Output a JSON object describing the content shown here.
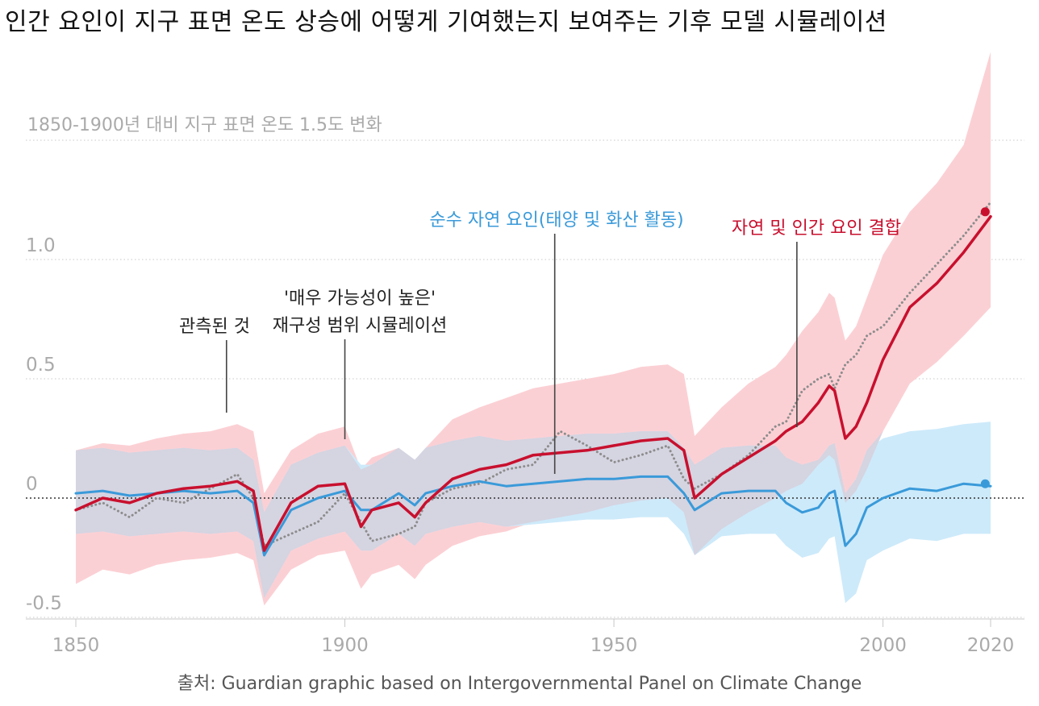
{
  "title": "인간 요인이 지구 표면 온도 상승에 어떻게 기여했는지 보여주는 기후 모델 시뮬레이션",
  "source": "출처: Guardian graphic based on Intergovernmental Panel on Climate Change",
  "colors": {
    "observed": "#8c8c8c",
    "natural": "#3a9ad9",
    "natural_band": "#cdeafa",
    "combined": "#c8102e",
    "combined_band": "#fbd0d4",
    "overlap_band": "#d5d4e1",
    "grid": "#c8c8c8",
    "axis_text": "#aaaaaa"
  },
  "chart_data": {
    "type": "line",
    "ylabel": "1850-1900년 대비 지구 표면 온도 1.5도 변화",
    "xlim": [
      1850,
      2020
    ],
    "ylim": [
      -0.5,
      1.5
    ],
    "xticks": [
      1850,
      1900,
      1950,
      2000,
      2020
    ],
    "yticks": [
      {
        "value": 1.0,
        "label": "1.0"
      },
      {
        "value": 0.5,
        "label": "0.5"
      },
      {
        "value": 0,
        "label": "0"
      },
      {
        "value": -0.5,
        "label": "-0.5"
      }
    ],
    "grid": true,
    "x_years": [
      1850,
      1855,
      1860,
      1865,
      1870,
      1875,
      1880,
      1883,
      1885,
      1890,
      1895,
      1900,
      1903,
      1905,
      1910,
      1913,
      1915,
      1920,
      1925,
      1930,
      1935,
      1940,
      1945,
      1950,
      1955,
      1960,
      1963,
      1965,
      1970,
      1975,
      1980,
      1982,
      1985,
      1988,
      1990,
      1991,
      1993,
      1995,
      1997,
      2000,
      2005,
      2010,
      2015,
      2020
    ],
    "series": [
      {
        "name": "관측된 것",
        "key": "observed",
        "y": [
          -0.05,
          -0.02,
          -0.08,
          0.0,
          -0.02,
          0.04,
          0.1,
          0.0,
          -0.2,
          -0.15,
          -0.1,
          0.02,
          -0.1,
          -0.18,
          -0.15,
          -0.12,
          -0.02,
          0.04,
          0.06,
          0.12,
          0.14,
          0.28,
          0.22,
          0.15,
          0.18,
          0.22,
          0.08,
          0.04,
          0.1,
          0.18,
          0.3,
          0.32,
          0.45,
          0.5,
          0.52,
          0.46,
          0.56,
          0.6,
          0.68,
          0.72,
          0.86,
          0.98,
          1.1,
          1.24
        ],
        "band_low": null,
        "band_high": null
      },
      {
        "name": "순수 자연 요인(태양 및 화산 활동)",
        "key": "natural",
        "y": [
          0.02,
          0.03,
          0.01,
          0.02,
          0.03,
          0.02,
          0.03,
          -0.02,
          -0.24,
          -0.05,
          0.0,
          0.03,
          -0.05,
          -0.05,
          0.02,
          -0.03,
          0.02,
          0.05,
          0.07,
          0.05,
          0.06,
          0.07,
          0.08,
          0.08,
          0.09,
          0.09,
          0.02,
          -0.05,
          0.02,
          0.03,
          0.03,
          -0.02,
          -0.06,
          -0.04,
          0.02,
          0.03,
          -0.2,
          -0.15,
          -0.04,
          0.0,
          0.04,
          0.03,
          0.06,
          0.05
        ],
        "band_low": [
          -0.15,
          -0.14,
          -0.16,
          -0.15,
          -0.14,
          -0.15,
          -0.14,
          -0.18,
          -0.42,
          -0.22,
          -0.17,
          -0.14,
          -0.22,
          -0.22,
          -0.15,
          -0.2,
          -0.15,
          -0.12,
          -0.1,
          -0.12,
          -0.11,
          -0.1,
          -0.09,
          -0.09,
          -0.08,
          -0.08,
          -0.15,
          -0.24,
          -0.16,
          -0.15,
          -0.15,
          -0.2,
          -0.25,
          -0.23,
          -0.17,
          -0.16,
          -0.44,
          -0.4,
          -0.26,
          -0.22,
          -0.17,
          -0.18,
          -0.15,
          -0.15
        ],
        "band_high": [
          0.2,
          0.21,
          0.19,
          0.2,
          0.21,
          0.2,
          0.21,
          0.16,
          -0.06,
          0.14,
          0.19,
          0.22,
          0.14,
          0.14,
          0.21,
          0.16,
          0.21,
          0.24,
          0.26,
          0.24,
          0.25,
          0.26,
          0.27,
          0.27,
          0.28,
          0.28,
          0.21,
          0.14,
          0.21,
          0.22,
          0.22,
          0.17,
          0.14,
          0.16,
          0.22,
          0.23,
          0.02,
          0.08,
          0.2,
          0.25,
          0.28,
          0.29,
          0.31,
          0.32
        ]
      },
      {
        "name": "자연 및 인간 요인 결합",
        "key": "combined",
        "y": [
          -0.05,
          0.0,
          -0.02,
          0.02,
          0.04,
          0.05,
          0.07,
          0.03,
          -0.22,
          -0.02,
          0.05,
          0.06,
          -0.12,
          -0.05,
          -0.02,
          -0.08,
          -0.02,
          0.08,
          0.12,
          0.14,
          0.18,
          0.19,
          0.2,
          0.22,
          0.24,
          0.25,
          0.2,
          0.0,
          0.1,
          0.17,
          0.24,
          0.28,
          0.32,
          0.4,
          0.47,
          0.45,
          0.25,
          0.3,
          0.4,
          0.58,
          0.8,
          0.9,
          1.03,
          1.18
        ],
        "band_low": [
          -0.36,
          -0.3,
          -0.32,
          -0.28,
          -0.26,
          -0.25,
          -0.23,
          -0.26,
          -0.45,
          -0.3,
          -0.24,
          -0.22,
          -0.38,
          -0.32,
          -0.28,
          -0.34,
          -0.28,
          -0.2,
          -0.16,
          -0.14,
          -0.1,
          -0.08,
          -0.06,
          -0.03,
          -0.01,
          0.0,
          -0.06,
          -0.24,
          -0.13,
          -0.06,
          0.0,
          0.03,
          0.06,
          0.14,
          0.18,
          0.16,
          -0.02,
          0.03,
          0.12,
          0.28,
          0.48,
          0.57,
          0.68,
          0.8
        ],
        "band_high": [
          0.2,
          0.23,
          0.22,
          0.25,
          0.27,
          0.28,
          0.31,
          0.28,
          0.02,
          0.2,
          0.27,
          0.3,
          0.12,
          0.17,
          0.21,
          0.16,
          0.21,
          0.33,
          0.38,
          0.42,
          0.46,
          0.48,
          0.5,
          0.52,
          0.55,
          0.56,
          0.52,
          0.26,
          0.38,
          0.48,
          0.55,
          0.6,
          0.7,
          0.78,
          0.86,
          0.84,
          0.66,
          0.72,
          0.84,
          1.02,
          1.2,
          1.32,
          1.48,
          1.87
        ]
      }
    ],
    "annotations": [
      {
        "key": "observed_label",
        "lines": [
          "관측된 것"
        ],
        "x": 1878,
        "y": 0.35
      },
      {
        "key": "range_label",
        "lines": [
          "'매우 가능성이 높은'",
          "재구성 범위 시뮬레이션"
        ],
        "x": 1900,
        "y": 0.27
      },
      {
        "key": "natural_label",
        "lines": [
          "순수 자연 요인(태양 및 화산 활동)"
        ],
        "x": 1939,
        "y": 0.1
      },
      {
        "key": "combined_label",
        "lines": [
          "자연 및 인간 요인 결합"
        ],
        "x": 1984,
        "y": 0.3
      }
    ],
    "end_markers": [
      {
        "series": "combined",
        "x": 2019,
        "y": 1.2
      },
      {
        "series": "natural",
        "x": 2019,
        "y": 0.06
      }
    ]
  }
}
